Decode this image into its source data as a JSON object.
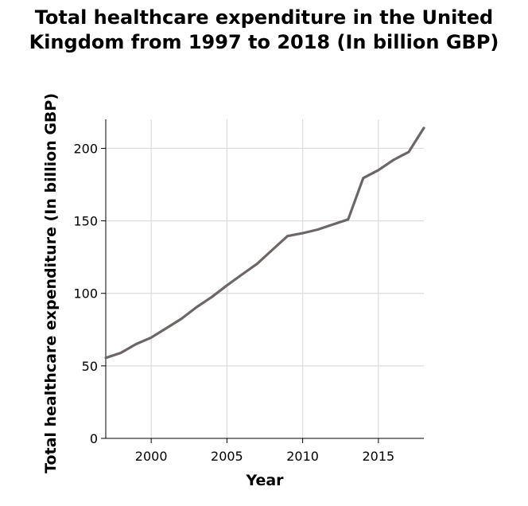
{
  "chart_data": {
    "type": "line",
    "title_lines": [
      "Total healthcare expenditure in the United",
      "Kingdom from 1997 to 2018 (In billion GBP)"
    ],
    "xlabel": "Year",
    "ylabel": "Total healthcare expenditure (In billion GBP)",
    "xlim": [
      1997,
      2018
    ],
    "ylim": [
      0,
      220
    ],
    "xticks": [
      2000,
      2005,
      2010,
      2015
    ],
    "yticks": [
      0,
      50,
      100,
      150,
      200
    ],
    "grid": true,
    "line_color": "#6e6566",
    "series": [
      {
        "x": [
          1997,
          1998,
          1999,
          2000,
          2001,
          2002,
          2003,
          2004,
          2005,
          2006,
          2007,
          2008,
          2009,
          2010,
          2011,
          2012,
          2013,
          2014,
          2015,
          2016,
          2017,
          2018
        ],
        "values": [
          55.5,
          59,
          65,
          69.5,
          76,
          82.5,
          90.5,
          97.5,
          105.5,
          113,
          120.5,
          130,
          139.5,
          141.5,
          144,
          147.5,
          151,
          179.5,
          185,
          192,
          197.5,
          214
        ]
      }
    ]
  }
}
